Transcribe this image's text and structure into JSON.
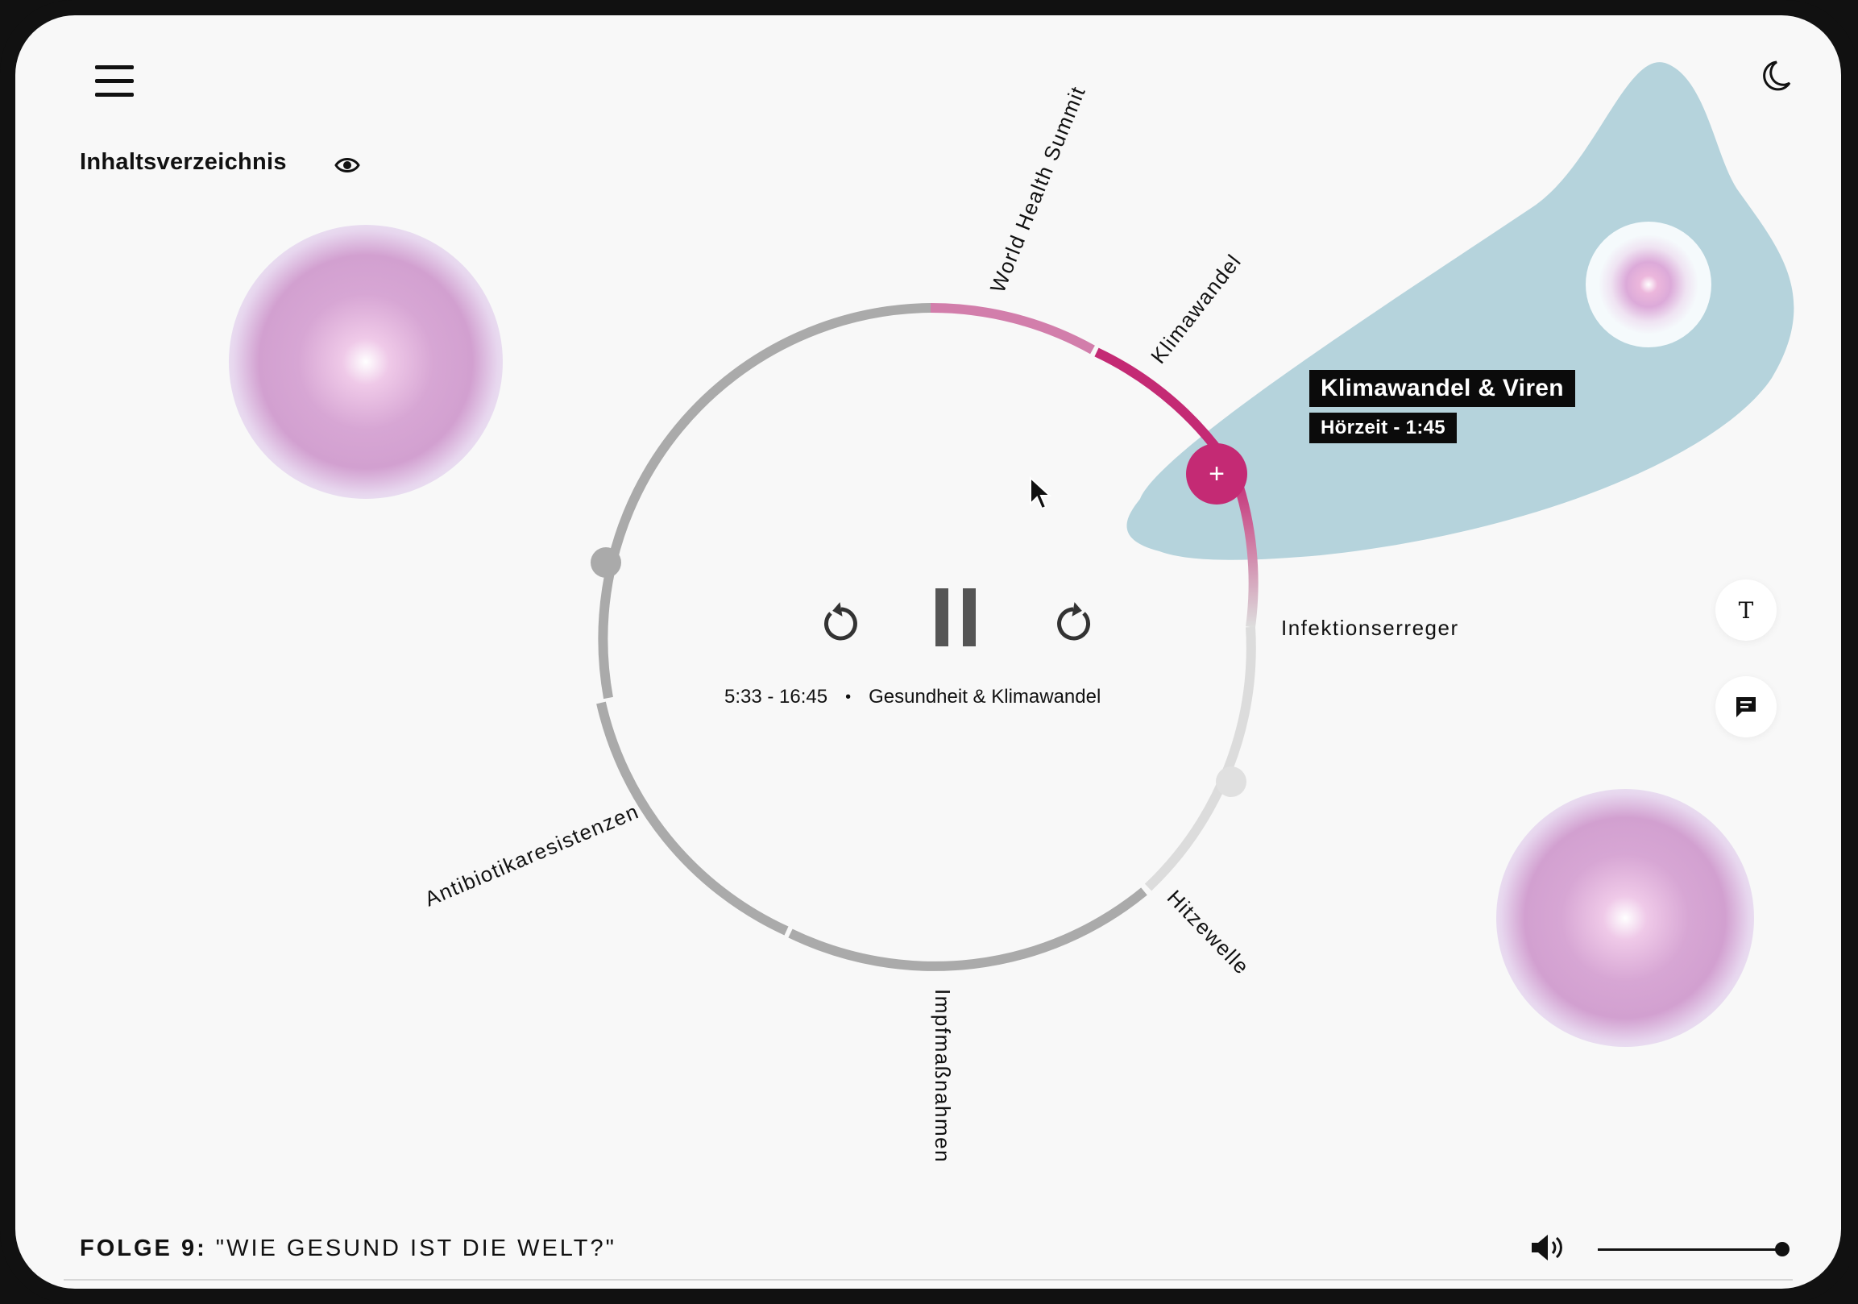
{
  "app": {
    "episode_prefix": "FOLGE 9:",
    "episode_title": "\"WIE GESUND IST DIE WELT?\""
  },
  "toc": {
    "title": "Inhaltsverzeichnis"
  },
  "chapters": [
    {
      "label": "World Health Summit"
    },
    {
      "label": "Klimawandel"
    },
    {
      "label": "Infektionserreger"
    },
    {
      "label": "Hitzewelle"
    },
    {
      "label": "Impfmaßnahmen"
    },
    {
      "label": "Antibiotikaresistenzen"
    }
  ],
  "tooltip": {
    "title": "Klimawandel & Viren",
    "duration": "Hörzeit - 1:45",
    "add_symbol": "+"
  },
  "player": {
    "time_range": "5:33 - 16:45",
    "separator": "•",
    "chapter_title": "Gesundheit & Klimawandel",
    "state": "playing"
  },
  "tools": {
    "text_button_glyph": "T"
  },
  "volume": {
    "level": 0.95
  },
  "colors": {
    "accent": "#c42a74",
    "accent_light": "#d27eab",
    "ring_grey": "#aaaaaa",
    "ring_light": "#dddddd",
    "blob": "#b5d3dc",
    "background": "#f8f8f8"
  },
  "icons": [
    "menu-icon",
    "moon-icon",
    "eye-icon",
    "rewind-icon",
    "pause-icon",
    "forward-icon",
    "text-icon",
    "comment-icon",
    "volume-icon",
    "cursor-icon"
  ]
}
